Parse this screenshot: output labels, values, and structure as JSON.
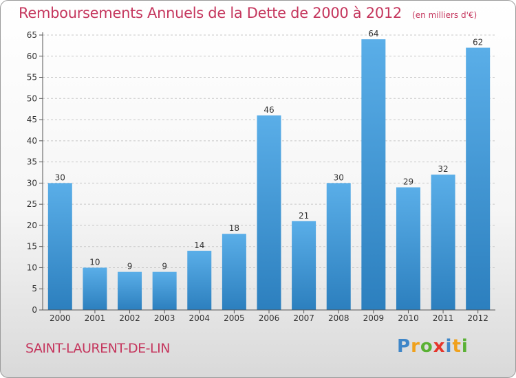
{
  "header": {
    "title": "Remboursements Annuels de la Dette de 2000 à 2012",
    "unit": "(en milliers d'€)"
  },
  "footer": {
    "commune": "SAINT-LAURENT-DE-LIN",
    "logo": [
      "P",
      "r",
      "o",
      "x",
      "i",
      "t",
      "i"
    ]
  },
  "colors": {
    "accent": "#c5375e",
    "bar_top": "#5aaee8",
    "bar_bottom": "#2c7fbe"
  },
  "chart_data": {
    "type": "bar",
    "categories": [
      "2000",
      "2001",
      "2002",
      "2003",
      "2004",
      "2005",
      "2006",
      "2007",
      "2008",
      "2009",
      "2010",
      "2011",
      "2012"
    ],
    "values": [
      30,
      10,
      9,
      9,
      14,
      18,
      46,
      21,
      30,
      64,
      29,
      32,
      62
    ],
    "title": "Remboursements Annuels de la Dette de 2000 à 2012",
    "ylabel": "",
    "xlabel": "",
    "ylim": [
      0,
      65
    ],
    "yticks": [
      0,
      5,
      10,
      15,
      20,
      25,
      30,
      35,
      40,
      45,
      50,
      55,
      60,
      65
    ],
    "grid": "horizontal-dashed",
    "data_labels": true
  }
}
